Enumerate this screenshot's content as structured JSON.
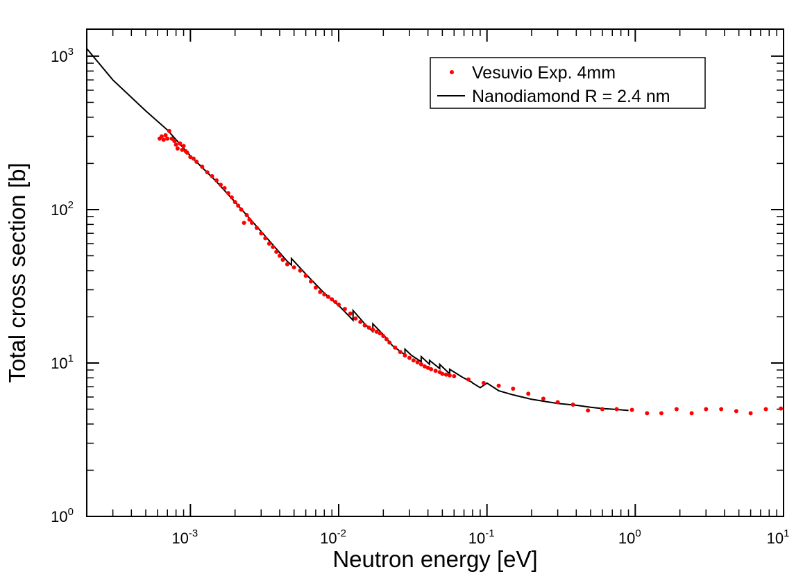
{
  "chart_data": {
    "type": "scatter",
    "title": "",
    "xlabel": "Neutron energy [eV]",
    "ylabel": "Total cross section [b]",
    "xscale": "log",
    "yscale": "log",
    "xlim": [
      0.0002,
      10
    ],
    "ylim": [
      1,
      1500
    ],
    "x_ticks": [
      {
        "value": 0.001,
        "base": "10",
        "exp": "-3"
      },
      {
        "value": 0.01,
        "base": "10",
        "exp": "-2"
      },
      {
        "value": 0.1,
        "base": "10",
        "exp": "-1"
      },
      {
        "value": 1,
        "base": "10",
        "exp": "0"
      },
      {
        "value": 10,
        "base": "10",
        "exp": "1"
      }
    ],
    "y_ticks": [
      {
        "value": 1,
        "base": "10",
        "exp": "0"
      },
      {
        "value": 10,
        "base": "10",
        "exp": "1"
      },
      {
        "value": 100,
        "base": "10",
        "exp": "2"
      },
      {
        "value": 1000,
        "base": "10",
        "exp": "3"
      }
    ],
    "legend": {
      "position": "top-right",
      "entries": [
        {
          "label": "Vesuvio Exp. 4mm",
          "marker": "dot",
          "color": "#ff0000"
        },
        {
          "label": "Nanodiamond R = 2.4 nm",
          "marker": "line",
          "color": "#000000"
        }
      ]
    },
    "series": [
      {
        "name": "Vesuvio Exp. 4mm",
        "kind": "scatter",
        "color": "#ff0000",
        "points": [
          [
            0.00062,
            290
          ],
          [
            0.00064,
            300
          ],
          [
            0.00066,
            285
          ],
          [
            0.00068,
            305
          ],
          [
            0.0007,
            290
          ],
          [
            0.00072,
            325
          ],
          [
            0.00075,
            290
          ],
          [
            0.00078,
            280
          ],
          [
            0.0008,
            265
          ],
          [
            0.00082,
            250
          ],
          [
            0.00085,
            270
          ],
          [
            0.00088,
            245
          ],
          [
            0.0009,
            260
          ],
          [
            0.00093,
            240
          ],
          [
            0.00095,
            235
          ],
          [
            0.001,
            220
          ],
          [
            0.00105,
            215
          ],
          [
            0.0011,
            205
          ],
          [
            0.0012,
            190
          ],
          [
            0.0013,
            175
          ],
          [
            0.0014,
            165
          ],
          [
            0.0015,
            155
          ],
          [
            0.0016,
            145
          ],
          [
            0.0017,
            138
          ],
          [
            0.0018,
            128
          ],
          [
            0.0019,
            120
          ],
          [
            0.002,
            112
          ],
          [
            0.0021,
            106
          ],
          [
            0.0022,
            100
          ],
          [
            0.0023,
            82
          ],
          [
            0.0024,
            92
          ],
          [
            0.0025,
            86
          ],
          [
            0.0026,
            82
          ],
          [
            0.0028,
            76
          ],
          [
            0.003,
            70
          ],
          [
            0.0032,
            65
          ],
          [
            0.0034,
            60
          ],
          [
            0.0036,
            57
          ],
          [
            0.0038,
            53
          ],
          [
            0.004,
            50
          ],
          [
            0.0042,
            47
          ],
          [
            0.0045,
            44
          ],
          [
            0.005,
            42
          ],
          [
            0.0055,
            40
          ],
          [
            0.006,
            37
          ],
          [
            0.0065,
            34
          ],
          [
            0.007,
            31
          ],
          [
            0.0075,
            29
          ],
          [
            0.008,
            28
          ],
          [
            0.0085,
            27
          ],
          [
            0.009,
            26
          ],
          [
            0.0095,
            25
          ],
          [
            0.01,
            24
          ],
          [
            0.011,
            22.5
          ],
          [
            0.012,
            21
          ],
          [
            0.013,
            19.5
          ],
          [
            0.014,
            18.5
          ],
          [
            0.015,
            17.6
          ],
          [
            0.016,
            17
          ],
          [
            0.017,
            16.5
          ],
          [
            0.018,
            16
          ],
          [
            0.019,
            15.6
          ],
          [
            0.02,
            15
          ],
          [
            0.021,
            14.3
          ],
          [
            0.022,
            13.6
          ],
          [
            0.024,
            12.6
          ],
          [
            0.026,
            11.8
          ],
          [
            0.028,
            11.2
          ],
          [
            0.03,
            10.8
          ],
          [
            0.032,
            10.4
          ],
          [
            0.034,
            10.1
          ],
          [
            0.036,
            9.8
          ],
          [
            0.038,
            9.5
          ],
          [
            0.04,
            9.3
          ],
          [
            0.042,
            9.1
          ],
          [
            0.045,
            8.9
          ],
          [
            0.048,
            8.7
          ],
          [
            0.05,
            8.5
          ],
          [
            0.053,
            8.4
          ],
          [
            0.056,
            8.3
          ],
          [
            0.06,
            8.2
          ],
          [
            0.075,
            7.8
          ],
          [
            0.095,
            7.4
          ],
          [
            0.12,
            7.1
          ],
          [
            0.15,
            6.8
          ],
          [
            0.19,
            6.3
          ],
          [
            0.24,
            5.85
          ],
          [
            0.3,
            5.55
          ],
          [
            0.38,
            5.35
          ],
          [
            0.48,
            4.9
          ],
          [
            0.6,
            5.0
          ],
          [
            0.75,
            5.0
          ],
          [
            0.95,
            4.95
          ],
          [
            1.2,
            4.7
          ],
          [
            1.5,
            4.7
          ],
          [
            1.9,
            5.0
          ],
          [
            2.4,
            4.7
          ],
          [
            3.0,
            5.0
          ],
          [
            3.8,
            5.0
          ],
          [
            4.8,
            4.85
          ],
          [
            6.0,
            4.7
          ],
          [
            7.6,
            5.0
          ],
          [
            9.6,
            5.05
          ]
        ]
      },
      {
        "name": "Nanodiamond R = 2.4 nm",
        "kind": "line",
        "color": "#000000",
        "points": [
          [
            0.0002,
            1120
          ],
          [
            0.0003,
            700
          ],
          [
            0.0005,
            440
          ],
          [
            0.0007,
            330
          ],
          [
            0.001,
            224
          ],
          [
            0.0015,
            152
          ],
          [
            0.002,
            112
          ],
          [
            0.003,
            72
          ],
          [
            0.0045,
            46
          ],
          [
            0.0048,
            43.5
          ],
          [
            0.0048,
            48
          ],
          [
            0.006,
            38
          ],
          [
            0.008,
            28.5
          ],
          [
            0.0101,
            23.5
          ],
          [
            0.0125,
            19
          ],
          [
            0.0125,
            22
          ],
          [
            0.015,
            18
          ],
          [
            0.017,
            16
          ],
          [
            0.017,
            18
          ],
          [
            0.02,
            15.3
          ],
          [
            0.023,
            13
          ],
          [
            0.028,
            11.3
          ],
          [
            0.028,
            12.3
          ],
          [
            0.031,
            11.2
          ],
          [
            0.036,
            10.2
          ],
          [
            0.036,
            11
          ],
          [
            0.041,
            9.8
          ],
          [
            0.041,
            10.4
          ],
          [
            0.048,
            9.2
          ],
          [
            0.048,
            9.8
          ],
          [
            0.056,
            8.5
          ],
          [
            0.056,
            9.1
          ],
          [
            0.068,
            8.1
          ],
          [
            0.079,
            7.5
          ],
          [
            0.08,
            7.4
          ],
          [
            0.09,
            6.9
          ],
          [
            0.1,
            7.4
          ],
          [
            0.12,
            6.6
          ],
          [
            0.15,
            6.2
          ],
          [
            0.2,
            5.8
          ],
          [
            0.25,
            5.6
          ],
          [
            0.3,
            5.45
          ],
          [
            0.4,
            5.3
          ],
          [
            0.5,
            5.15
          ],
          [
            0.6,
            5.05
          ],
          [
            0.7,
            5.0
          ],
          [
            0.9,
            4.9
          ]
        ]
      }
    ]
  }
}
